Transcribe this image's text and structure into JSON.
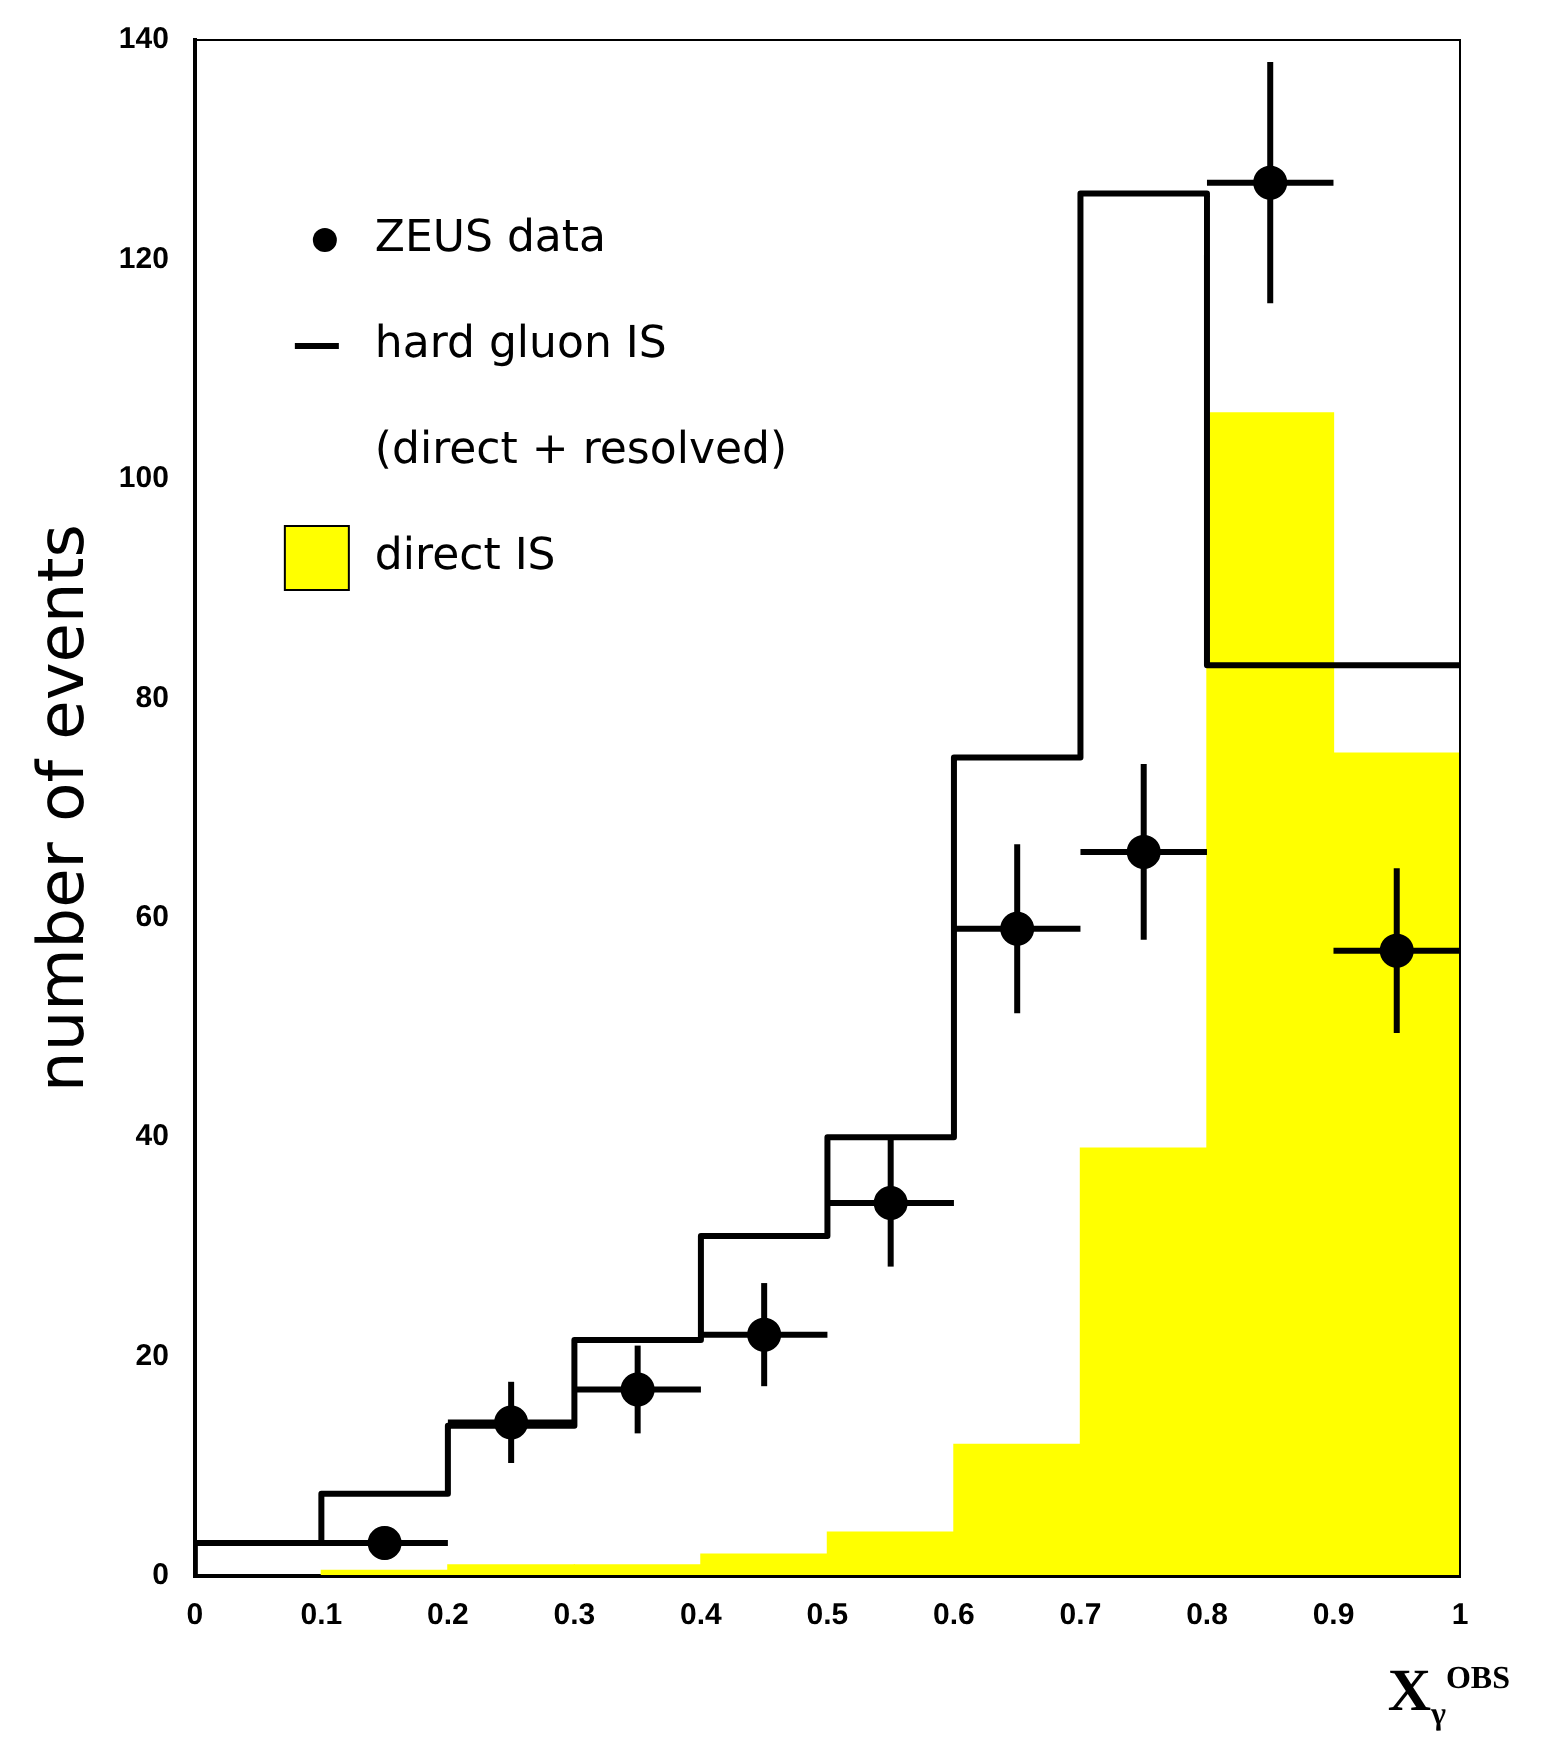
{
  "chart_data": {
    "type": "histogram",
    "xlabel": "X$_{γ}$$^{OBS}$",
    "ylabel": "number of events",
    "bins": [
      0,
      0.1,
      0.2,
      0.3,
      0.4,
      0.5,
      0.6,
      0.7,
      0.8,
      0.9,
      1
    ],
    "series": [
      {
        "name": "ZEUS data",
        "type": "scatter",
        "marker": "circle",
        "color": "#000000",
        "x": [
          0.15,
          0.25,
          0.35,
          0.45,
          0.55,
          0.65,
          0.75,
          0.85,
          0.95
        ],
        "values": [
          3,
          14,
          17,
          22,
          34,
          59,
          66,
          127,
          57
        ],
        "errors": [
          1.5,
          3.7,
          4,
          4.7,
          5.8,
          7.7,
          8,
          11,
          7.5
        ],
        "xerrors": [
          0.05,
          0.05,
          0.05,
          0.05,
          0.05,
          0.05,
          0.05,
          0.05,
          0.05
        ]
      },
      {
        "name": "hard gluon IS\n(direct + resolved)",
        "type": "step",
        "color": "#000000",
        "x": [
          0,
          0.1,
          0.2,
          0.3,
          0.4,
          0.5,
          0.6,
          0.7,
          0.8,
          0.9,
          1
        ],
        "values": [
          0,
          3,
          7.5,
          13.7,
          21.5,
          31,
          40,
          74.6,
          126,
          83,
          83
        ]
      },
      {
        "name": "direct IS",
        "color": "#ffff00",
        "values": [
          0,
          0.5,
          1,
          1,
          2,
          4,
          12,
          39,
          106,
          75
        ]
      }
    ],
    "xlim": [
      0,
      1
    ],
    "xticks": [
      0,
      0.1,
      0.2,
      0.3,
      0.4,
      0.5,
      0.6,
      0.7,
      0.8,
      0.9,
      1
    ],
    "ylim": [
      0,
      140
    ],
    "yticks": [
      0,
      20,
      40,
      60,
      80,
      100,
      120,
      140
    ],
    "grid": false,
    "legend": "top left"
  }
}
